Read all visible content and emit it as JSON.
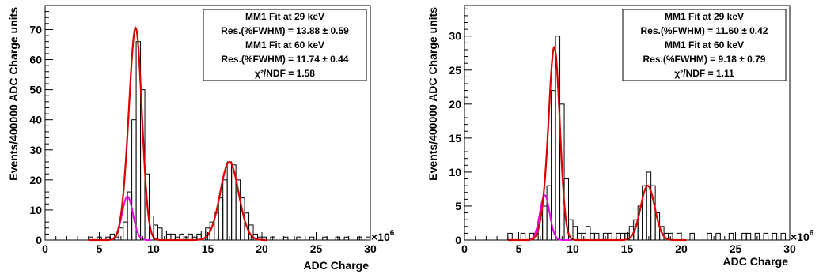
{
  "chart_data": [
    {
      "type": "histogram",
      "xlabel": "ADC Charge",
      "ylabel": "Events/400000 ADC Charge units",
      "x_multiplier_label": "×10",
      "x_multiplier_exp": "6",
      "xlim": [
        0,
        30
      ],
      "ylim": [
        0,
        78
      ],
      "x_ticks": [
        0,
        5,
        10,
        15,
        20,
        25,
        30
      ],
      "y_ticks": [
        0,
        10,
        20,
        30,
        40,
        50,
        60,
        70
      ],
      "legend_lines": [
        "MM1 Fit at 29 keV",
        "Res.(%FWHM) = 13.88 ± 0.59",
        "MM1 Fit at 60 keV",
        "Res.(%FWHM) = 11.74 ± 0.44",
        "χ²/NDF = 1.58"
      ],
      "histogram": [
        [
          4.0,
          1
        ],
        [
          4.4,
          0
        ],
        [
          4.8,
          1
        ],
        [
          5.2,
          0
        ],
        [
          5.6,
          1
        ],
        [
          6.0,
          2
        ],
        [
          6.4,
          1
        ],
        [
          6.8,
          4
        ],
        [
          7.2,
          6
        ],
        [
          7.6,
          16
        ],
        [
          8.0,
          40
        ],
        [
          8.4,
          66
        ],
        [
          8.8,
          50
        ],
        [
          9.2,
          22
        ],
        [
          9.6,
          8
        ],
        [
          10.0,
          5
        ],
        [
          10.4,
          4
        ],
        [
          10.8,
          3
        ],
        [
          11.2,
          2
        ],
        [
          11.6,
          2
        ],
        [
          12.0,
          1
        ],
        [
          12.4,
          2
        ],
        [
          12.8,
          1
        ],
        [
          13.2,
          2
        ],
        [
          13.6,
          1
        ],
        [
          14.0,
          2
        ],
        [
          14.4,
          3
        ],
        [
          14.8,
          4
        ],
        [
          15.2,
          6
        ],
        [
          15.6,
          9
        ],
        [
          16.0,
          14
        ],
        [
          16.4,
          20
        ],
        [
          16.8,
          26
        ],
        [
          17.2,
          25
        ],
        [
          17.6,
          20
        ],
        [
          18.0,
          14
        ],
        [
          18.4,
          9
        ],
        [
          18.8,
          5
        ],
        [
          19.2,
          2
        ],
        [
          19.6,
          1
        ],
        [
          20.0,
          1
        ],
        [
          20.4,
          0
        ],
        [
          20.8,
          1
        ],
        [
          21.2,
          0
        ],
        [
          21.6,
          0
        ],
        [
          22.0,
          1
        ],
        [
          22.4,
          0
        ],
        [
          22.8,
          0
        ],
        [
          23.2,
          1
        ],
        [
          23.6,
          0
        ],
        [
          24.0,
          0
        ],
        [
          24.4,
          1
        ],
        [
          24.8,
          0
        ],
        [
          25.2,
          0
        ],
        [
          25.6,
          1
        ],
        [
          26.0,
          0
        ],
        [
          26.4,
          0
        ],
        [
          26.8,
          1
        ],
        [
          27.2,
          0
        ],
        [
          27.6,
          1
        ],
        [
          28.0,
          0
        ],
        [
          28.4,
          0
        ],
        [
          28.8,
          1
        ],
        [
          29.2,
          0
        ],
        [
          29.6,
          1
        ]
      ],
      "fits": {
        "total": [
          {
            "amp": 67,
            "mean": 8.4,
            "sigma": 0.55
          },
          {
            "amp": 12,
            "mean": 7.6,
            "sigma": 0.5
          },
          {
            "amp": 26,
            "mean": 17.0,
            "sigma": 0.85
          }
        ],
        "component": {
          "amp": 14.5,
          "mean": 7.6,
          "sigma": 0.5
        }
      },
      "colors": {
        "histogram": "#000000",
        "fit_total": "#dd0000",
        "fit_component": "#ee00ee"
      }
    },
    {
      "type": "histogram",
      "xlabel": "ADC Charge",
      "ylabel": "Events/400000 ADC Charge units",
      "x_multiplier_label": "×10",
      "x_multiplier_exp": "6",
      "xlim": [
        0,
        30
      ],
      "ylim": [
        0,
        34.5
      ],
      "x_ticks": [
        0,
        5,
        10,
        15,
        20,
        25,
        30
      ],
      "y_ticks": [
        0,
        5,
        10,
        15,
        20,
        25,
        30
      ],
      "legend_lines": [
        "MM1 Fit at 29 keV",
        "Res.(%FWHM) = 11.60 ± 0.42",
        "MM1 Fit at 60 keV",
        "Res.(%FWHM) = 9.18 ± 0.79",
        "χ²/NDF = 1.11"
      ],
      "histogram": [
        [
          4.0,
          1
        ],
        [
          4.4,
          0
        ],
        [
          4.8,
          0
        ],
        [
          5.2,
          1
        ],
        [
          5.6,
          0
        ],
        [
          6.0,
          1
        ],
        [
          6.4,
          1
        ],
        [
          6.8,
          3
        ],
        [
          7.2,
          5
        ],
        [
          7.6,
          8
        ],
        [
          8.0,
          22
        ],
        [
          8.4,
          30
        ],
        [
          8.8,
          20
        ],
        [
          9.2,
          9
        ],
        [
          9.6,
          3
        ],
        [
          10.0,
          2
        ],
        [
          10.4,
          1
        ],
        [
          10.8,
          1
        ],
        [
          11.2,
          2
        ],
        [
          11.6,
          1
        ],
        [
          12.0,
          1
        ],
        [
          12.4,
          0
        ],
        [
          12.8,
          1
        ],
        [
          13.2,
          1
        ],
        [
          13.6,
          0
        ],
        [
          14.0,
          1
        ],
        [
          14.4,
          1
        ],
        [
          14.8,
          1
        ],
        [
          15.2,
          2
        ],
        [
          15.6,
          3
        ],
        [
          16.0,
          5
        ],
        [
          16.4,
          8
        ],
        [
          16.8,
          10
        ],
        [
          17.2,
          8
        ],
        [
          17.6,
          4
        ],
        [
          18.0,
          2
        ],
        [
          18.4,
          1
        ],
        [
          18.8,
          1
        ],
        [
          19.2,
          0
        ],
        [
          19.6,
          1
        ],
        [
          20.0,
          0
        ],
        [
          20.4,
          0
        ],
        [
          20.8,
          1
        ],
        [
          21.2,
          0
        ],
        [
          21.6,
          0
        ],
        [
          22.0,
          0
        ],
        [
          22.4,
          1
        ],
        [
          22.8,
          0
        ],
        [
          23.2,
          1
        ],
        [
          23.6,
          0
        ],
        [
          24.0,
          0
        ],
        [
          24.4,
          1
        ],
        [
          24.8,
          0
        ],
        [
          25.2,
          0
        ],
        [
          25.6,
          1
        ],
        [
          26.0,
          1
        ],
        [
          26.4,
          0
        ],
        [
          26.8,
          1
        ],
        [
          27.2,
          0
        ],
        [
          27.6,
          1
        ],
        [
          28.0,
          0
        ],
        [
          28.4,
          1
        ],
        [
          28.8,
          0
        ],
        [
          29.2,
          1
        ],
        [
          29.6,
          0
        ]
      ],
      "fits": {
        "total": [
          {
            "amp": 28,
            "mean": 8.3,
            "sigma": 0.5
          },
          {
            "amp": 3,
            "mean": 7.4,
            "sigma": 0.45
          },
          {
            "amp": 8,
            "mean": 16.9,
            "sigma": 0.65
          }
        ],
        "component": {
          "amp": 6.6,
          "mean": 7.4,
          "sigma": 0.45
        }
      },
      "colors": {
        "histogram": "#000000",
        "fit_total": "#dd0000",
        "fit_component": "#ee00ee"
      }
    }
  ]
}
